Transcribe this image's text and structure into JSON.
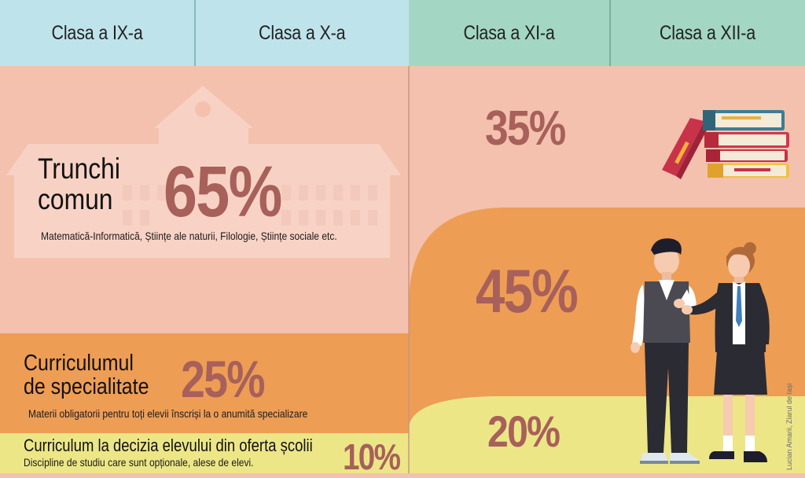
{
  "header": {
    "col1": "Clasa a IX-a",
    "col2": "Clasa a X-a",
    "col3": "Clasa a XI-a",
    "col4": "Clasa a XII-a"
  },
  "left": {
    "trunchi": {
      "title_line1": "Trunchi",
      "title_line2": "comun",
      "percent": "65%",
      "subtitle": "Matematică-Informatică, Științe ale naturii, Filologie, Științe sociale etc."
    },
    "specialitate": {
      "title_line1": "Curriculumul",
      "title_line2": "de specialitate",
      "percent": "25%",
      "subtitle": "Materii obligatorii pentru toți elevii înscriși la o anumită specializare"
    },
    "decizie": {
      "title": "Curriculum la decizia elevului din oferta școlii",
      "percent": "10%",
      "subtitle": "Discipline de studiu care sunt opționale, alese de elevi."
    }
  },
  "right": {
    "trunchi_percent": "35%",
    "specialitate_percent": "45%",
    "decizie_percent": "20%"
  },
  "credit": "Lucian Amarii, Ziarul de Iași",
  "colors": {
    "header_left": "#bfe3ea",
    "header_right": "#a3d7c3",
    "trunchi_bg": "#f3c1ad",
    "specialitate_bg": "#ee9d55",
    "decizie_bg": "#ece687",
    "percent_color": "#a7605a"
  },
  "icons": [
    "school-building-icon",
    "books-stack-icon",
    "students-illustration-icon"
  ]
}
